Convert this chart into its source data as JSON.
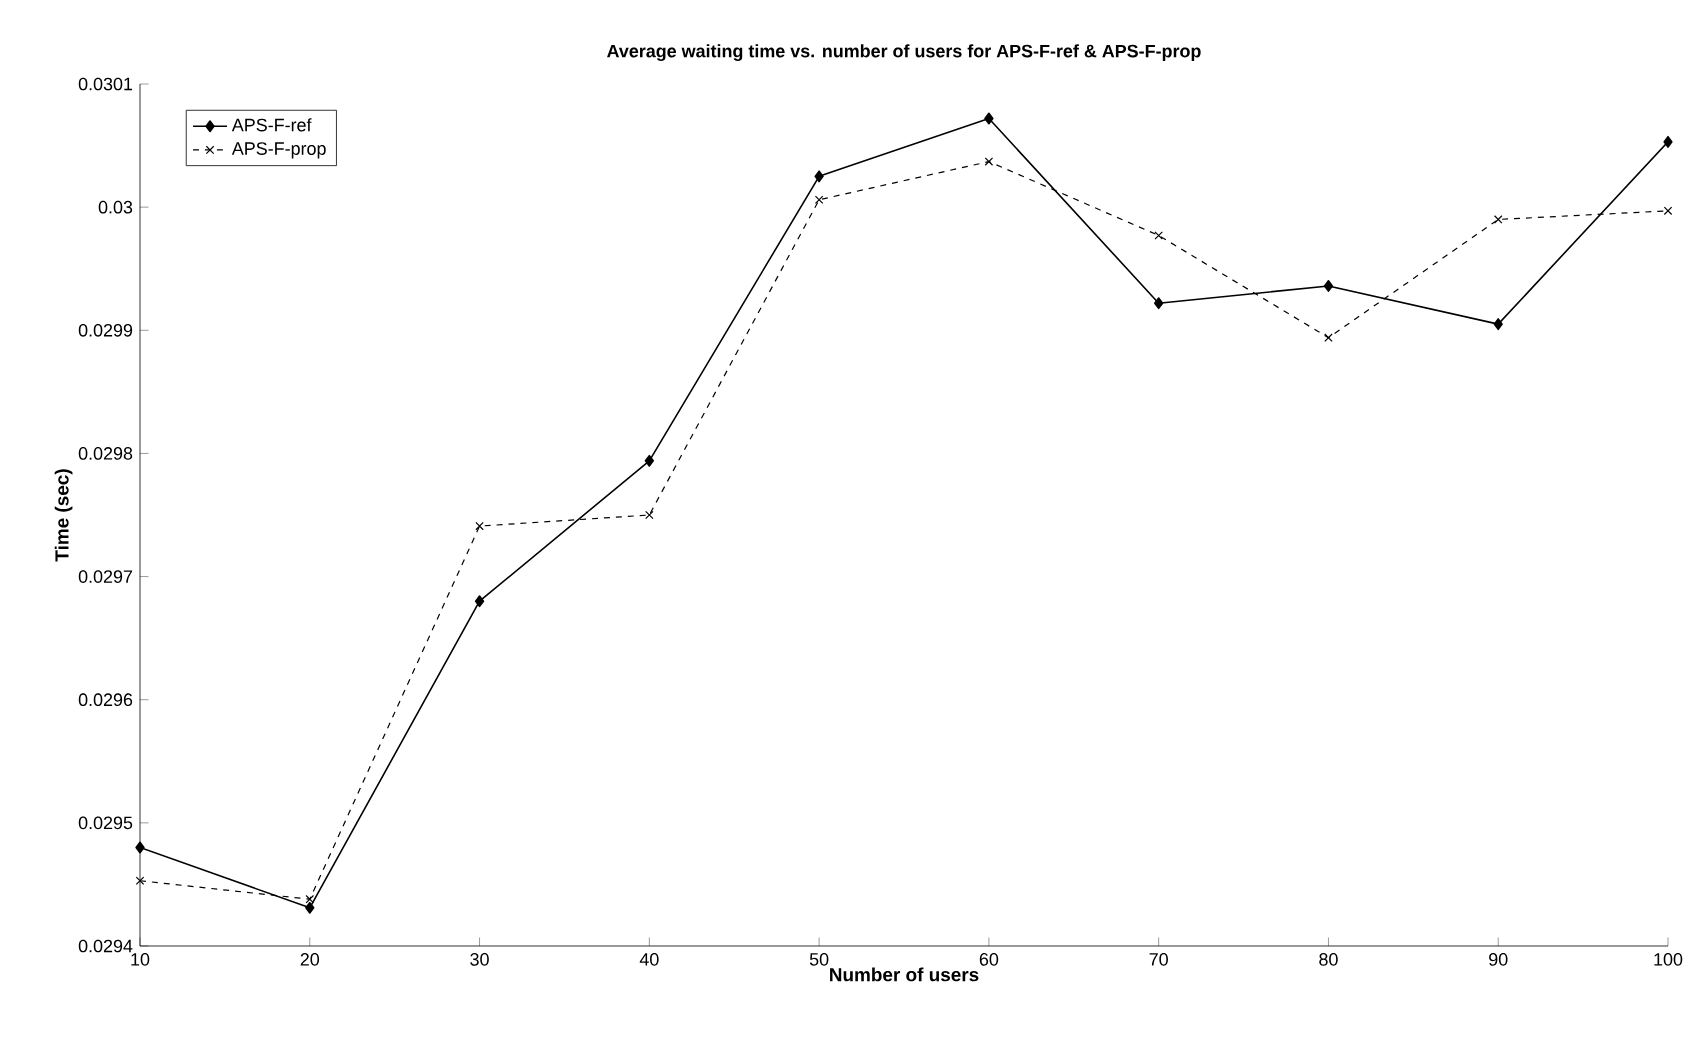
{
  "chart_data": {
    "type": "line",
    "title": "Average waiting time vs. number of users for APS-F-ref & APS-F-prop",
    "xlabel": "Number of users",
    "ylabel": "Time (sec)",
    "x": [
      10,
      20,
      30,
      40,
      50,
      60,
      70,
      80,
      90,
      100
    ],
    "series": [
      {
        "name": "APS-F-ref",
        "color": "#000000",
        "marker": "diamond",
        "line_style": "solid",
        "values": [
          0.02948,
          0.029431,
          0.02968,
          0.029794,
          0.030025,
          0.030072,
          0.029922,
          0.029936,
          0.029905,
          0.030053
        ]
      },
      {
        "name": "APS-F-prop",
        "color": "#000000",
        "marker": "cross",
        "line_style": "dashed",
        "values": [
          0.029453,
          0.029438,
          0.029741,
          0.02975,
          0.030006,
          0.030037,
          0.029977,
          0.029894,
          0.02999,
          0.029997
        ]
      }
    ],
    "xlim": [
      10,
      100
    ],
    "xticks": [
      10,
      20,
      30,
      40,
      50,
      60,
      70,
      80,
      90,
      100
    ],
    "ylim": [
      0.0294,
      0.0301
    ],
    "yticks": [
      0.0294,
      0.0295,
      0.0296,
      0.0297,
      0.0298,
      0.0299,
      0.03,
      0.0301
    ],
    "legend": "top left"
  }
}
